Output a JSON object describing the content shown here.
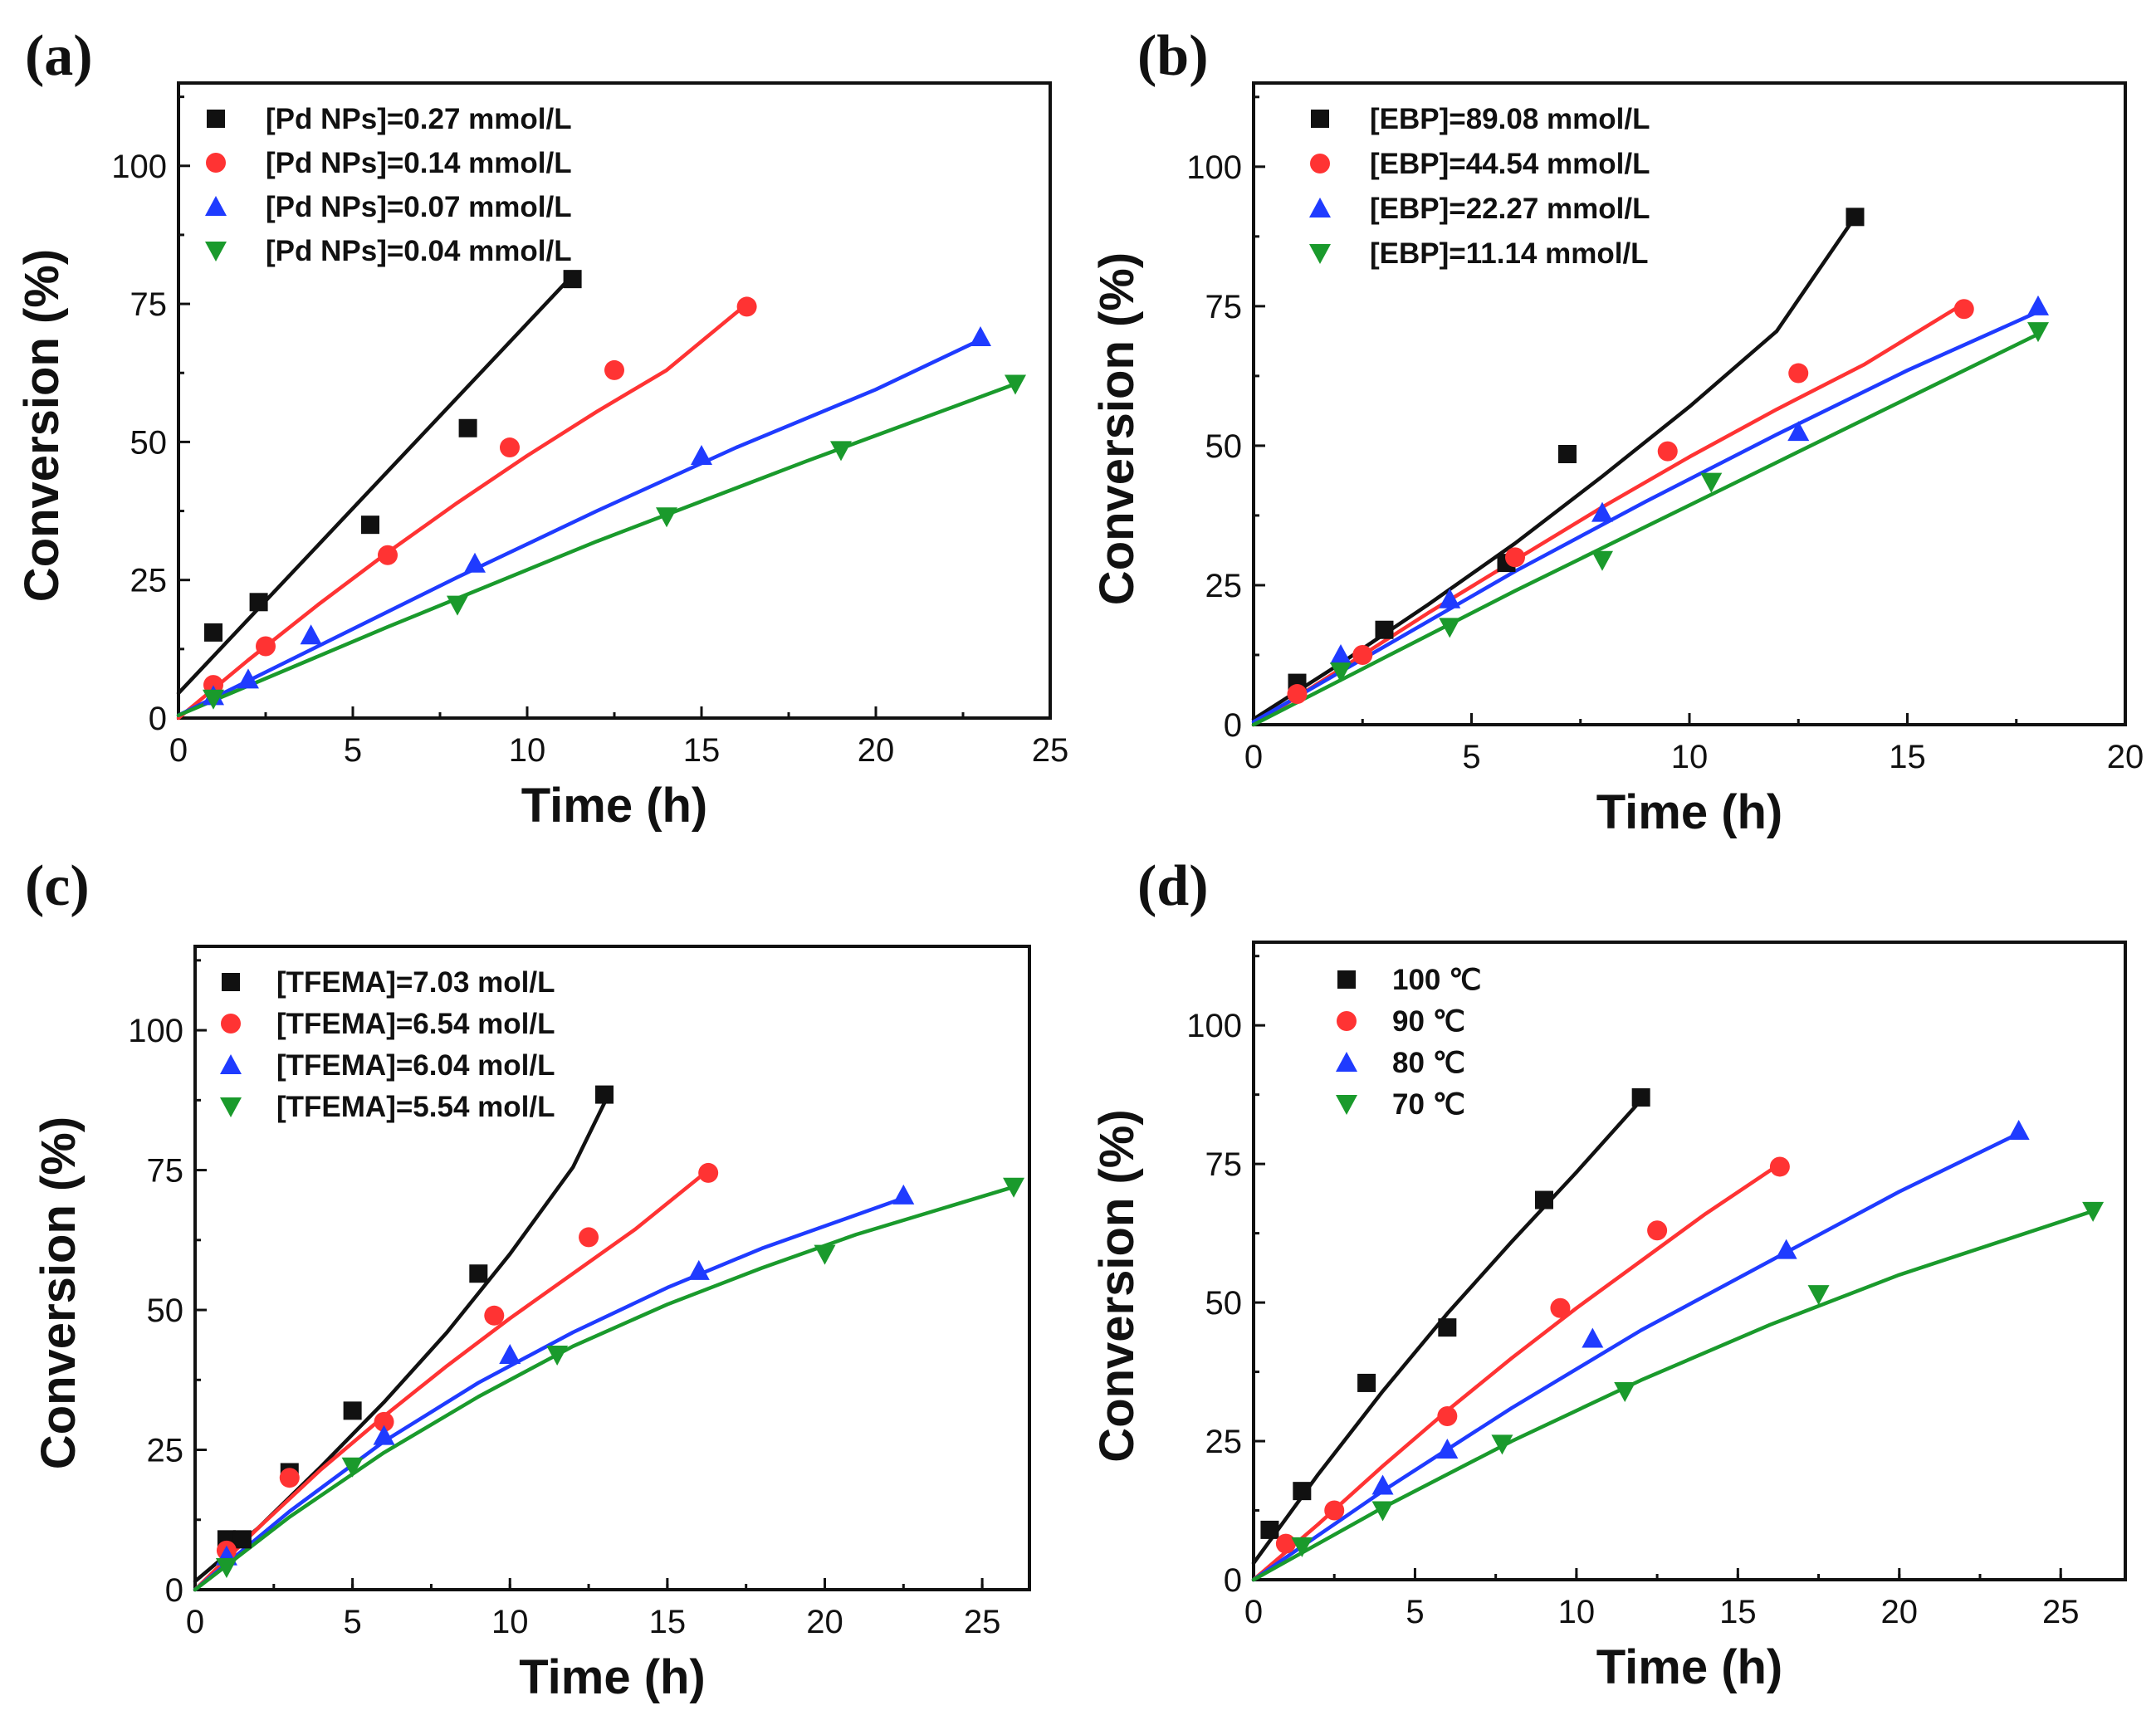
{
  "figure": {
    "background": "#ffffff"
  },
  "chart_data": [
    {
      "type": "scatter",
      "panel_label": "(a)",
      "title": "",
      "xlabel": "Time (h)",
      "ylabel": "Conversion (%)",
      "xlim": [
        0,
        25
      ],
      "ylim": [
        0,
        115
      ],
      "xticks": [
        0,
        5,
        10,
        15,
        20,
        25
      ],
      "yticks": [
        0,
        25,
        50,
        75,
        100
      ],
      "grid": false,
      "legend_position": "top-left",
      "series": [
        {
          "name": "[Pd NPs]=0.27 mmol/L",
          "color": "#111111",
          "marker": "square",
          "points": [
            [
              1.0,
              15.5
            ],
            [
              2.3,
              21
            ],
            [
              5.5,
              35
            ],
            [
              8.3,
              52.5
            ],
            [
              11.3,
              79.5
            ]
          ],
          "fit": [
            [
              0,
              4.5
            ],
            [
              11.2,
              79.5
            ]
          ]
        },
        {
          "name": "[Pd NPs]=0.14 mmol/L",
          "color": "#ff3333",
          "marker": "circle",
          "points": [
            [
              1.0,
              6
            ],
            [
              2.5,
              13
            ],
            [
              6.0,
              29.5
            ],
            [
              9.5,
              49
            ],
            [
              12.5,
              63
            ],
            [
              16.3,
              74.5
            ]
          ],
          "fit": [
            [
              0,
              0
            ],
            [
              2,
              10.5
            ],
            [
              4,
              20.5
            ],
            [
              6,
              30
            ],
            [
              8,
              39
            ],
            [
              10,
              47.5
            ],
            [
              12,
              55.5
            ],
            [
              14,
              63
            ],
            [
              16.3,
              75
            ]
          ]
        },
        {
          "name": "[Pd NPs]=0.07 mmol/L",
          "color": "#1f3bff",
          "marker": "triangle-up",
          "points": [
            [
              1.0,
              4
            ],
            [
              2.0,
              7
            ],
            [
              3.8,
              15
            ],
            [
              8.5,
              28
            ],
            [
              15.0,
              47.5
            ],
            [
              23.0,
              69
            ]
          ],
          "fit": [
            [
              0,
              0.5
            ],
            [
              4,
              13
            ],
            [
              8,
              25.5
            ],
            [
              12,
              37.5
            ],
            [
              16,
              49
            ],
            [
              20,
              59.5
            ],
            [
              23,
              68.5
            ]
          ]
        },
        {
          "name": "[Pd NPs]=0.04 mmol/L",
          "color": "#1a9a2c",
          "marker": "triangle-down",
          "points": [
            [
              1.0,
              3.5
            ],
            [
              8.0,
              20.5
            ],
            [
              14.0,
              36.5
            ],
            [
              19.0,
              48.5
            ],
            [
              24.0,
              60.5
            ]
          ],
          "fit": [
            [
              0,
              0.5
            ],
            [
              6,
              16.5
            ],
            [
              12,
              32
            ],
            [
              18,
              46.5
            ],
            [
              24,
              60.5
            ]
          ]
        }
      ]
    },
    {
      "type": "scatter",
      "panel_label": "(b)",
      "title": "",
      "xlabel": "Time (h)",
      "ylabel": "Conversion (%)",
      "xlim": [
        0,
        20
      ],
      "ylim": [
        0,
        115
      ],
      "xticks": [
        0,
        5,
        10,
        15,
        20
      ],
      "yticks": [
        0,
        25,
        50,
        75,
        100
      ],
      "grid": false,
      "legend_position": "top-left",
      "series": [
        {
          "name": "[EBP]=89.08 mmol/L",
          "color": "#111111",
          "marker": "square",
          "points": [
            [
              1.0,
              7.5
            ],
            [
              3.0,
              17
            ],
            [
              5.8,
              29
            ],
            [
              7.2,
              48.5
            ],
            [
              13.8,
              91
            ]
          ],
          "fit": [
            [
              0,
              1
            ],
            [
              2,
              11
            ],
            [
              4,
              21.5
            ],
            [
              6,
              32.5
            ],
            [
              8,
              44.5
            ],
            [
              10,
              57
            ],
            [
              12,
              70.5
            ],
            [
              13.8,
              91
            ]
          ]
        },
        {
          "name": "[EBP]=44.54 mmol/L",
          "color": "#ff3333",
          "marker": "circle",
          "points": [
            [
              1.0,
              5.5
            ],
            [
              2.5,
              12.5
            ],
            [
              6.0,
              30
            ],
            [
              9.5,
              49
            ],
            [
              12.5,
              63
            ],
            [
              16.3,
              74.5
            ]
          ],
          "fit": [
            [
              0,
              0
            ],
            [
              2,
              10
            ],
            [
              4,
              20
            ],
            [
              6,
              29.5
            ],
            [
              8,
              39
            ],
            [
              10,
              48
            ],
            [
              12,
              56.5
            ],
            [
              14,
              64.5
            ],
            [
              16.3,
              75.5
            ]
          ]
        },
        {
          "name": "[EBP]=22.27 mmol/L",
          "color": "#1f3bff",
          "marker": "triangle-up",
          "points": [
            [
              2.0,
              12.5
            ],
            [
              4.5,
              22.5
            ],
            [
              8.0,
              38
            ],
            [
              12.5,
              52.5
            ],
            [
              18.0,
              75
            ]
          ],
          "fit": [
            [
              0,
              0.5
            ],
            [
              3,
              14
            ],
            [
              6,
              27.5
            ],
            [
              9,
              40
            ],
            [
              12,
              52
            ],
            [
              15,
              63.5
            ],
            [
              18,
              74
            ]
          ]
        },
        {
          "name": "[EBP]=11.14 mmol/L",
          "color": "#1a9a2c",
          "marker": "triangle-down",
          "points": [
            [
              2.0,
              9.5
            ],
            [
              4.5,
              17.5
            ],
            [
              8.0,
              29.5
            ],
            [
              10.5,
              43.5
            ],
            [
              18.0,
              70.5
            ]
          ],
          "fit": [
            [
              0,
              0
            ],
            [
              3,
              12
            ],
            [
              6,
              24
            ],
            [
              9,
              35.5
            ],
            [
              12,
              47
            ],
            [
              15,
              58.5
            ],
            [
              18,
              70
            ]
          ]
        }
      ]
    },
    {
      "type": "scatter",
      "panel_label": "(c)",
      "title": "",
      "xlabel": "Time (h)",
      "ylabel": "Conversion (%)",
      "xlim": [
        0,
        26.5
      ],
      "ylim": [
        0,
        115
      ],
      "xticks": [
        0,
        5,
        10,
        15,
        20,
        25
      ],
      "yticks": [
        0,
        25,
        50,
        75,
        100
      ],
      "grid": false,
      "legend_position": "top-left",
      "series": [
        {
          "name": "[TFEMA]=7.03 mol/L",
          "color": "#111111",
          "marker": "square",
          "points": [
            [
              1.0,
              9
            ],
            [
              1.5,
              9
            ],
            [
              3.0,
              21
            ],
            [
              5.0,
              32
            ],
            [
              9.0,
              56.5
            ],
            [
              13.0,
              88.5
            ]
          ],
          "fit": [
            [
              0,
              1.5
            ],
            [
              2,
              11
            ],
            [
              4,
              22
            ],
            [
              6,
              33.5
            ],
            [
              8,
              46
            ],
            [
              10,
              60
            ],
            [
              12,
              75.5
            ],
            [
              13,
              87
            ]
          ]
        },
        {
          "name": "[TFEMA]=6.54 mol/L",
          "color": "#ff3333",
          "marker": "circle",
          "points": [
            [
              1.0,
              7
            ],
            [
              3.0,
              20
            ],
            [
              6.0,
              30
            ],
            [
              9.5,
              49
            ],
            [
              12.5,
              63
            ],
            [
              16.3,
              74.5
            ]
          ],
          "fit": [
            [
              0,
              0
            ],
            [
              2,
              11
            ],
            [
              4,
              21.5
            ],
            [
              6,
              31
            ],
            [
              8,
              40
            ],
            [
              10,
              48.5
            ],
            [
              12,
              56.5
            ],
            [
              14,
              64.5
            ],
            [
              16.3,
              75
            ]
          ]
        },
        {
          "name": "[TFEMA]=6.04 mol/L",
          "color": "#1f3bff",
          "marker": "triangle-up",
          "points": [
            [
              1.0,
              6
            ],
            [
              6.0,
              27.5
            ],
            [
              10.0,
              42
            ],
            [
              16.0,
              57
            ],
            [
              22.5,
              70.5
            ]
          ],
          "fit": [
            [
              0,
              0
            ],
            [
              3,
              14
            ],
            [
              6,
              26.5
            ],
            [
              9,
              37
            ],
            [
              12,
              46
            ],
            [
              15,
              54
            ],
            [
              18,
              61
            ],
            [
              22.5,
              70
            ]
          ]
        },
        {
          "name": "[TFEMA]=5.54 mol/L",
          "color": "#1a9a2c",
          "marker": "triangle-down",
          "points": [
            [
              1.0,
              4
            ],
            [
              5.0,
              22
            ],
            [
              11.5,
              42
            ],
            [
              20.0,
              60
            ],
            [
              26.0,
              72
            ]
          ],
          "fit": [
            [
              0,
              0
            ],
            [
              3,
              13
            ],
            [
              6,
              24.5
            ],
            [
              9,
              34.5
            ],
            [
              12,
              43.5
            ],
            [
              15,
              51
            ],
            [
              18,
              57.5
            ],
            [
              21,
              63.5
            ],
            [
              26,
              72
            ]
          ]
        }
      ]
    },
    {
      "type": "scatter",
      "panel_label": "(d)",
      "title": "",
      "xlabel": "Time (h)",
      "ylabel": "Conversion (%)",
      "xlim": [
        0,
        27
      ],
      "ylim": [
        0,
        115
      ],
      "xticks": [
        0,
        5,
        10,
        15,
        20,
        25
      ],
      "yticks": [
        0,
        25,
        50,
        75,
        100
      ],
      "grid": false,
      "legend_position": "top-left",
      "series": [
        {
          "name": "100 ℃",
          "color": "#111111",
          "marker": "square",
          "points": [
            [
              0.5,
              9
            ],
            [
              1.5,
              16
            ],
            [
              3.5,
              35.5
            ],
            [
              6.0,
              45.5
            ],
            [
              9.0,
              68.5
            ],
            [
              12.0,
              87
            ]
          ],
          "fit": [
            [
              0,
              3
            ],
            [
              2,
              19
            ],
            [
              4,
              34
            ],
            [
              6,
              48
            ],
            [
              8,
              61
            ],
            [
              10,
              73.5
            ],
            [
              12,
              86.5
            ]
          ]
        },
        {
          "name": "90 ℃",
          "color": "#ff3333",
          "marker": "circle",
          "points": [
            [
              1.0,
              6.5
            ],
            [
              2.5,
              12.5
            ],
            [
              6.0,
              29.5
            ],
            [
              9.5,
              49
            ],
            [
              12.5,
              63
            ],
            [
              16.3,
              74.5
            ]
          ],
          "fit": [
            [
              0,
              0
            ],
            [
              2,
              10
            ],
            [
              4,
              20.5
            ],
            [
              6,
              30.5
            ],
            [
              8,
              40
            ],
            [
              10,
              49
            ],
            [
              12,
              57.5
            ],
            [
              14,
              66
            ],
            [
              16.3,
              75
            ]
          ]
        },
        {
          "name": "80 ℃",
          "color": "#1f3bff",
          "marker": "triangle-up",
          "points": [
            [
              4.0,
              17
            ],
            [
              6.0,
              23.5
            ],
            [
              10.5,
              43.5
            ],
            [
              16.5,
              59.5
            ],
            [
              23.7,
              81
            ]
          ],
          "fit": [
            [
              0,
              0
            ],
            [
              4,
              16
            ],
            [
              8,
              31
            ],
            [
              12,
              45
            ],
            [
              16,
              57.5
            ],
            [
              20,
              70
            ],
            [
              23.7,
              80.5
            ]
          ]
        },
        {
          "name": "70 ℃",
          "color": "#1a9a2c",
          "marker": "triangle-down",
          "points": [
            [
              1.5,
              6
            ],
            [
              4.0,
              12.5
            ],
            [
              7.7,
              24.5
            ],
            [
              11.5,
              34
            ],
            [
              17.5,
              51.5
            ],
            [
              26.0,
              66.5
            ]
          ],
          "fit": [
            [
              0,
              0
            ],
            [
              4,
              13
            ],
            [
              8,
              25
            ],
            [
              12,
              36
            ],
            [
              16,
              46
            ],
            [
              20,
              55
            ],
            [
              26,
              66.5
            ]
          ]
        }
      ]
    }
  ]
}
